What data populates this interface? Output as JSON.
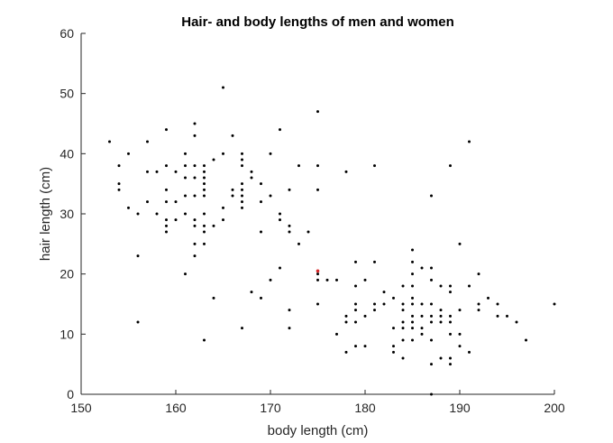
{
  "chart_data": {
    "type": "scatter",
    "title": "Hair- and body lengths of men and women",
    "xlabel": "body length (cm)",
    "ylabel": "hair length (cm)",
    "xlim": [
      150,
      200
    ],
    "ylim": [
      0,
      60
    ],
    "xticks": [
      150,
      160,
      170,
      180,
      190,
      200
    ],
    "yticks": [
      0,
      10,
      20,
      30,
      40,
      50,
      60
    ],
    "grid": false,
    "box": "open",
    "colors": {
      "point": "#000000",
      "highlight": "#d62728",
      "axis": "#262626"
    },
    "series": [
      {
        "points": [
          [
            153,
            42
          ],
          [
            154,
            38
          ],
          [
            154,
            35
          ],
          [
            154,
            34
          ],
          [
            155,
            40
          ],
          [
            155,
            31
          ],
          [
            156,
            30
          ],
          [
            156,
            23
          ],
          [
            156,
            12
          ],
          [
            157,
            42
          ],
          [
            157,
            37
          ],
          [
            157,
            32
          ],
          [
            158,
            37
          ],
          [
            158,
            30
          ],
          [
            159,
            44
          ],
          [
            159,
            38
          ],
          [
            159,
            34
          ],
          [
            159,
            32
          ],
          [
            159,
            29
          ],
          [
            159,
            28
          ],
          [
            159,
            27
          ],
          [
            160,
            37
          ],
          [
            160,
            32
          ],
          [
            160,
            29
          ],
          [
            161,
            40
          ],
          [
            161,
            38
          ],
          [
            161,
            36
          ],
          [
            161,
            33
          ],
          [
            161,
            30
          ],
          [
            161,
            20
          ],
          [
            162,
            45
          ],
          [
            162,
            43
          ],
          [
            162,
            38
          ],
          [
            162,
            36
          ],
          [
            162,
            33
          ],
          [
            162,
            29
          ],
          [
            162,
            28
          ],
          [
            162,
            25
          ],
          [
            162,
            23
          ],
          [
            163,
            38
          ],
          [
            163,
            37
          ],
          [
            163,
            36
          ],
          [
            163,
            35
          ],
          [
            163,
            34
          ],
          [
            163,
            33
          ],
          [
            163,
            30
          ],
          [
            163,
            28
          ],
          [
            163,
            27
          ],
          [
            163,
            25
          ],
          [
            163,
            9
          ],
          [
            164,
            39
          ],
          [
            164,
            28
          ],
          [
            164,
            16
          ],
          [
            165,
            51
          ],
          [
            165,
            40
          ],
          [
            165,
            31
          ],
          [
            165,
            29
          ],
          [
            166,
            43
          ],
          [
            166,
            34
          ],
          [
            166,
            33
          ],
          [
            167,
            40
          ],
          [
            167,
            39
          ],
          [
            167,
            38
          ],
          [
            167,
            35
          ],
          [
            167,
            34
          ],
          [
            167,
            33
          ],
          [
            167,
            32
          ],
          [
            167,
            31
          ],
          [
            167,
            11
          ],
          [
            168,
            37
          ],
          [
            168,
            36
          ],
          [
            168,
            17
          ],
          [
            169,
            35
          ],
          [
            169,
            32
          ],
          [
            169,
            27
          ],
          [
            169,
            16
          ],
          [
            170,
            40
          ],
          [
            170,
            33
          ],
          [
            170,
            19
          ],
          [
            171,
            44
          ],
          [
            171,
            30
          ],
          [
            171,
            29
          ],
          [
            171,
            21
          ],
          [
            172,
            34
          ],
          [
            172,
            28
          ],
          [
            172,
            27
          ],
          [
            172,
            14
          ],
          [
            172,
            11
          ],
          [
            173,
            38
          ],
          [
            173,
            25
          ],
          [
            174,
            27
          ],
          [
            175,
            47
          ],
          [
            175,
            38
          ],
          [
            175,
            34
          ],
          [
            175,
            20
          ],
          [
            175,
            19
          ],
          [
            175,
            15
          ],
          [
            176,
            19
          ],
          [
            177,
            19
          ],
          [
            177,
            10
          ],
          [
            178,
            37
          ],
          [
            178,
            13
          ],
          [
            178,
            12
          ],
          [
            178,
            7
          ],
          [
            179,
            22
          ],
          [
            179,
            18
          ],
          [
            179,
            15
          ],
          [
            179,
            14
          ],
          [
            179,
            12
          ],
          [
            179,
            8
          ],
          [
            180,
            19
          ],
          [
            180,
            13
          ],
          [
            180,
            8
          ],
          [
            181,
            38
          ],
          [
            181,
            22
          ],
          [
            181,
            15
          ],
          [
            181,
            14
          ],
          [
            182,
            17
          ],
          [
            182,
            15
          ],
          [
            183,
            16
          ],
          [
            183,
            11
          ],
          [
            183,
            8
          ],
          [
            183,
            7
          ],
          [
            184,
            18
          ],
          [
            184,
            15
          ],
          [
            184,
            14
          ],
          [
            184,
            12
          ],
          [
            184,
            11
          ],
          [
            184,
            9
          ],
          [
            184,
            6
          ],
          [
            185,
            24
          ],
          [
            185,
            22
          ],
          [
            185,
            20
          ],
          [
            185,
            18
          ],
          [
            185,
            16
          ],
          [
            185,
            15
          ],
          [
            185,
            13
          ],
          [
            185,
            12
          ],
          [
            185,
            11
          ],
          [
            185,
            9
          ],
          [
            186,
            21
          ],
          [
            186,
            15
          ],
          [
            186,
            13
          ],
          [
            186,
            11
          ],
          [
            186,
            10
          ],
          [
            187,
            33
          ],
          [
            187,
            21
          ],
          [
            187,
            19
          ],
          [
            187,
            15
          ],
          [
            187,
            13
          ],
          [
            187,
            12
          ],
          [
            187,
            9
          ],
          [
            187,
            5
          ],
          [
            187,
            0
          ],
          [
            188,
            18
          ],
          [
            188,
            14
          ],
          [
            188,
            13
          ],
          [
            188,
            12
          ],
          [
            188,
            6
          ],
          [
            189,
            38
          ],
          [
            189,
            18
          ],
          [
            189,
            17
          ],
          [
            189,
            13
          ],
          [
            189,
            12
          ],
          [
            189,
            10
          ],
          [
            189,
            6
          ],
          [
            189,
            5
          ],
          [
            190,
            25
          ],
          [
            190,
            14
          ],
          [
            190,
            10
          ],
          [
            190,
            8
          ],
          [
            191,
            42
          ],
          [
            191,
            18
          ],
          [
            191,
            7
          ],
          [
            192,
            20
          ],
          [
            192,
            15
          ],
          [
            192,
            14
          ],
          [
            193,
            16
          ],
          [
            194,
            15
          ],
          [
            194,
            13
          ],
          [
            195,
            13
          ],
          [
            196,
            12
          ],
          [
            197,
            9
          ],
          [
            200,
            15
          ]
        ],
        "highlight_points": [
          [
            175,
            20.5
          ]
        ]
      }
    ]
  }
}
